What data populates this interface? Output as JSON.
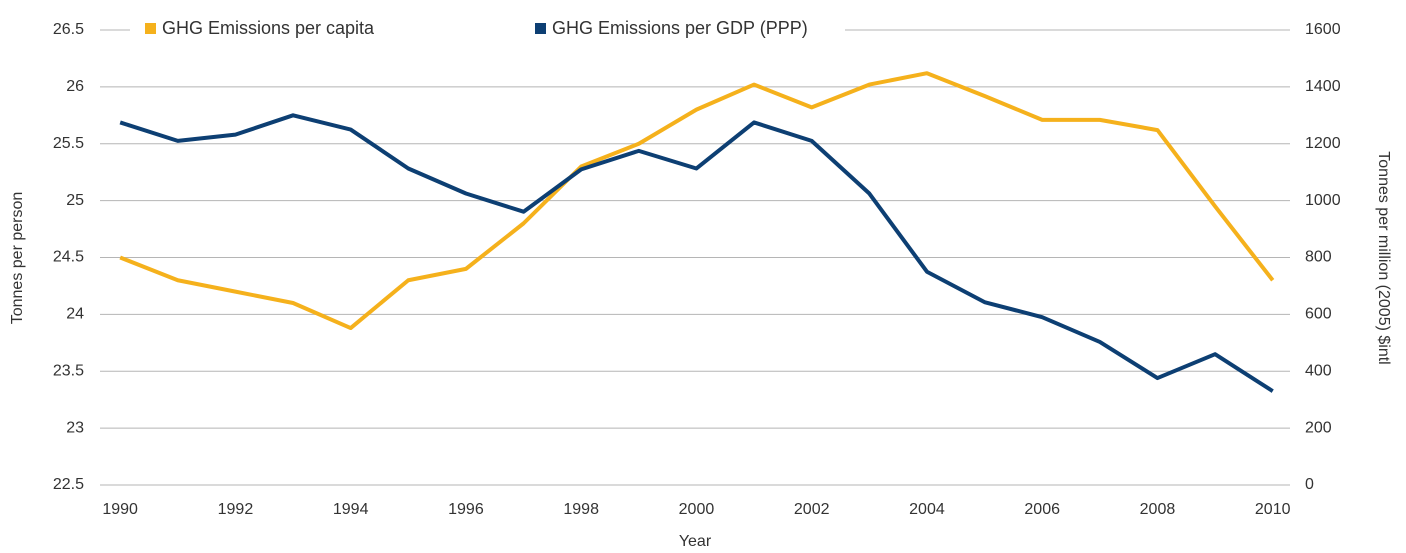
{
  "chart_data": {
    "type": "line",
    "x": [
      1990,
      1991,
      1992,
      1993,
      1994,
      1995,
      1996,
      1997,
      1998,
      1999,
      2000,
      2001,
      2002,
      2003,
      2004,
      2005,
      2006,
      2007,
      2008,
      2009,
      2010
    ],
    "series": [
      {
        "name": "GHG Emissions per capita",
        "color": "#f5b11c",
        "values": [
          24.5,
          24.3,
          24.2,
          24.1,
          23.88,
          24.3,
          24.4,
          24.8,
          25.3,
          25.5,
          25.8,
          26.02,
          25.82,
          26.02,
          26.12,
          25.92,
          25.71,
          25.71,
          25.62,
          24.95,
          24.3
        ]
      },
      {
        "name": "GHG Emissions per GDP (PPP)",
        "color": "#0d3f73",
        "axis": "y2",
        "values": [
          1275,
          1210,
          1232,
          1300,
          1250,
          1113,
          1025,
          961,
          1110,
          1175,
          1113,
          1275,
          1210,
          1025,
          750,
          643,
          590,
          503,
          376,
          460,
          330
        ]
      }
    ],
    "xlabel": "Year",
    "ylabel": "Tonnes per person",
    "y2label": "Tonnes per million (2005) $intl",
    "xlim": [
      1989.65,
      2010.3
    ],
    "xticks": [
      1990,
      1992,
      1994,
      1996,
      1998,
      2000,
      2002,
      2004,
      2006,
      2008,
      2010
    ],
    "ylim": [
      22.5,
      26.5
    ],
    "yticks": [
      22.5,
      23,
      23.5,
      24,
      24.5,
      25,
      25.5,
      26,
      26.5
    ],
    "y2lim": [
      0,
      1600
    ],
    "y2ticks": [
      0,
      200,
      400,
      600,
      800,
      1000,
      1200,
      1400,
      1600
    ],
    "grid": true,
    "legend": "top"
  }
}
